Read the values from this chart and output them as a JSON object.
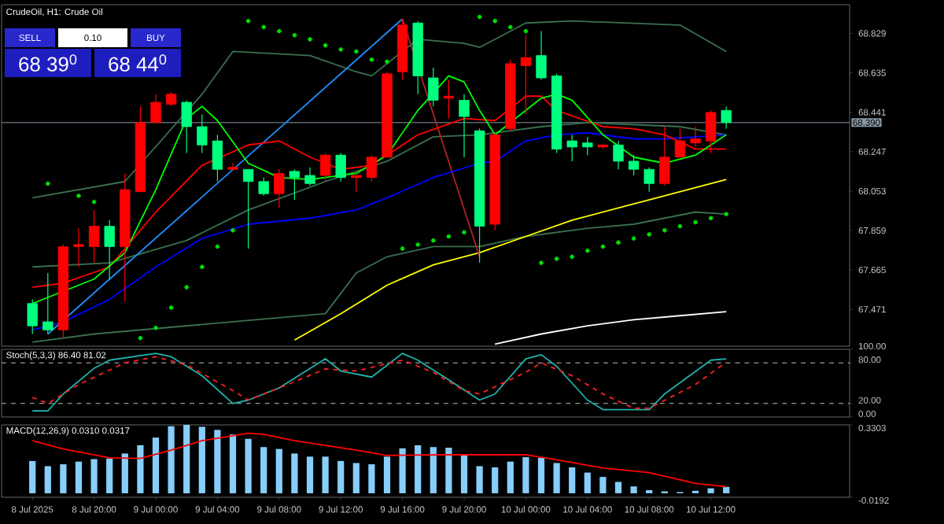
{
  "chart_data": [
    {
      "type": "candlestick",
      "title": "CrudeOil, H1: Crude Oil",
      "x": [
        "2025-07-08T16:00",
        "2025-07-08T17:00",
        "2025-07-08T18:00",
        "2025-07-08T19:00",
        "2025-07-08T20:00",
        "2025-07-08T21:00",
        "2025-07-08T22:00",
        "2025-07-08T23:00",
        "2025-07-09T00:00",
        "2025-07-09T01:00",
        "2025-07-09T02:00",
        "2025-07-09T03:00",
        "2025-07-09T04:00",
        "2025-07-09T05:00",
        "2025-07-09T06:00",
        "2025-07-09T07:00",
        "2025-07-09T08:00",
        "2025-07-09T09:00",
        "2025-07-09T10:00",
        "2025-07-09T11:00",
        "2025-07-09T12:00",
        "2025-07-09T13:00",
        "2025-07-09T14:00",
        "2025-07-09T15:00",
        "2025-07-09T16:00",
        "2025-07-09T17:00",
        "2025-07-09T18:00",
        "2025-07-09T19:00",
        "2025-07-09T20:00",
        "2025-07-09T21:00",
        "2025-07-09T22:00",
        "2025-07-09T23:00",
        "2025-07-10T00:00",
        "2025-07-10T01:00",
        "2025-07-10T02:00",
        "2025-07-10T03:00",
        "2025-07-10T04:00",
        "2025-07-10T05:00",
        "2025-07-10T06:00",
        "2025-07-10T07:00",
        "2025-07-10T08:00",
        "2025-07-10T09:00",
        "2025-07-10T10:00",
        "2025-07-10T11:00",
        "2025-07-10T12:00",
        "2025-07-10T13:00"
      ],
      "ohlc": [
        [
          67.5,
          67.52,
          67.35,
          67.39
        ],
        [
          67.41,
          67.65,
          67.35,
          67.37
        ],
        [
          67.37,
          67.79,
          67.33,
          67.78
        ],
        [
          67.78,
          67.87,
          67.68,
          67.79
        ],
        [
          67.78,
          67.96,
          67.7,
          67.88
        ],
        [
          67.88,
          67.91,
          67.62,
          67.78
        ],
        [
          67.78,
          68.14,
          67.51,
          68.06
        ],
        [
          68.05,
          68.47,
          68.05,
          68.39
        ],
        [
          68.39,
          68.53,
          68.39,
          68.49
        ],
        [
          68.48,
          68.54,
          68.47,
          68.53
        ],
        [
          68.49,
          68.5,
          68.24,
          68.37
        ],
        [
          68.37,
          68.43,
          68.24,
          68.28
        ],
        [
          68.3,
          68.33,
          68.1,
          68.16
        ],
        [
          68.16,
          68.19,
          68.16,
          68.17
        ],
        [
          68.16,
          68.16,
          67.77,
          68.1
        ],
        [
          68.1,
          68.12,
          68.03,
          68.04
        ],
        [
          68.04,
          68.16,
          67.97,
          68.14
        ],
        [
          68.15,
          68.16,
          68.01,
          68.12
        ],
        [
          68.13,
          68.17,
          68.08,
          68.09
        ],
        [
          68.13,
          68.24,
          68.1,
          68.23
        ],
        [
          68.23,
          68.24,
          68.1,
          68.12
        ],
        [
          68.12,
          68.13,
          68.05,
          68.13
        ],
        [
          68.12,
          68.23,
          68.1,
          68.22
        ],
        [
          68.22,
          68.64,
          68.22,
          68.63
        ],
        [
          68.64,
          68.9,
          68.6,
          68.87
        ],
        [
          68.88,
          68.89,
          68.53,
          68.62
        ],
        [
          68.61,
          68.66,
          68.47,
          68.5
        ],
        [
          68.51,
          68.6,
          68.41,
          68.52
        ],
        [
          68.5,
          68.53,
          68.22,
          68.42
        ],
        [
          68.35,
          68.36,
          67.7,
          67.88
        ],
        [
          67.89,
          68.34,
          67.86,
          68.33
        ],
        [
          68.36,
          68.7,
          68.35,
          68.68
        ],
        [
          68.67,
          68.82,
          68.43,
          68.71
        ],
        [
          68.72,
          68.84,
          68.6,
          68.61
        ],
        [
          68.62,
          68.63,
          68.24,
          68.26
        ],
        [
          68.3,
          68.33,
          68.2,
          68.27
        ],
        [
          68.29,
          68.32,
          68.23,
          68.27
        ],
        [
          68.27,
          68.28,
          68.26,
          68.28
        ],
        [
          68.28,
          68.3,
          68.16,
          68.2
        ],
        [
          68.2,
          68.23,
          68.13,
          68.16
        ],
        [
          68.16,
          68.17,
          68.05,
          68.09
        ],
        [
          68.09,
          68.37,
          68.08,
          68.22
        ],
        [
          68.22,
          68.36,
          68.22,
          68.3
        ],
        [
          68.29,
          68.37,
          68.27,
          68.31
        ],
        [
          68.3,
          68.45,
          68.24,
          68.44
        ],
        [
          68.45,
          68.47,
          68.36,
          68.39
        ]
      ],
      "colors": [
        "#00ff7f",
        "#00ff7f",
        "#ff0000",
        "#ff0000",
        "#ff0000",
        "#00ff7f",
        "#ff0000",
        "#ff0000",
        "#ff0000",
        "#ff0000",
        "#00ff7f",
        "#00ff7f",
        "#00ff7f",
        "#ff0000",
        "#00ff7f",
        "#00ff7f",
        "#ff0000",
        "#00ff7f",
        "#00ff7f",
        "#ff0000",
        "#00ff7f",
        "#ff0000",
        "#ff0000",
        "#ff0000",
        "#ff0000",
        "#00ff7f",
        "#00ff7f",
        "#ff0000",
        "#00ff7f",
        "#00ff7f",
        "#ff0000",
        "#ff0000",
        "#ff0000",
        "#00ff7f",
        "#00ff7f",
        "#00ff7f",
        "#00ff7f",
        "#ff0000",
        "#00ff7f",
        "#00ff7f",
        "#00ff7f",
        "#ff0000",
        "#ff0000",
        "#ff0000",
        "#ff0000",
        "#00ff7f"
      ],
      "xlim": [
        "2025-07-08T14:00",
        "2025-07-10T21:00"
      ],
      "ylim": [
        67.29,
        68.97
      ],
      "yticks": [
        68.829,
        68.635,
        68.441,
        68.247,
        68.053,
        67.859,
        67.665,
        67.471
      ],
      "tick_labels": "y",
      "ref_lines": [
        {
          "axis": "y",
          "value": 68.39,
          "label": "68.390",
          "color": "#8a9aa8"
        }
      ],
      "annotations": [
        "SELL",
        "0.10",
        "BUY",
        "68 39$^{0}$",
        "68 44$^{0}$"
      ],
      "series": [
        {
          "type": "line",
          "color": "#3a7050",
          "x": [
            "2025-07-08T16:00",
            "2025-07-08T22:00",
            "2025-07-09T03:00",
            "2025-07-09T05:00",
            "2025-07-09T10:00",
            "2025-07-09T13:00",
            "2025-07-09T14:00",
            "2025-07-09T17:00",
            "2025-07-09T20:00",
            "2025-07-09T21:00",
            "2025-07-10T00:00",
            "2025-07-10T03:00",
            "2025-07-10T10:00",
            "2025-07-10T13:00"
          ],
          "values": [
            68.02,
            68.1,
            68.53,
            68.74,
            68.72,
            68.64,
            68.62,
            68.8,
            68.78,
            68.76,
            68.88,
            68.89,
            68.87,
            68.74
          ]
        },
        {
          "type": "line",
          "color": "#3a7050",
          "x": [
            "2025-07-08T16:00",
            "2025-07-08T21:00",
            "2025-07-09T02:00",
            "2025-07-09T06:00",
            "2025-07-09T11:00",
            "2025-07-09T15:00",
            "2025-07-09T18:00",
            "2025-07-09T21:00",
            "2025-07-10T01:00",
            "2025-07-10T04:00",
            "2025-07-10T10:00",
            "2025-07-10T13:00"
          ],
          "values": [
            67.68,
            67.7,
            67.81,
            67.96,
            68.1,
            68.2,
            68.32,
            68.33,
            68.37,
            68.39,
            68.37,
            68.33
          ]
        },
        {
          "type": "line",
          "color": "#3a7050",
          "x": [
            "2025-07-08T16:00",
            "2025-07-08T20:00",
            "2025-07-09T11:00",
            "2025-07-09T13:00",
            "2025-07-09T15:00",
            "2025-07-09T18:00",
            "2025-07-09T21:00",
            "2025-07-10T00:00",
            "2025-07-10T04:00",
            "2025-07-10T07:00",
            "2025-07-10T11:00",
            "2025-07-10T13:00"
          ],
          "values": [
            67.31,
            67.35,
            67.45,
            67.65,
            67.73,
            67.78,
            67.78,
            67.83,
            67.87,
            67.89,
            67.95,
            67.94
          ]
        },
        {
          "type": "line",
          "color": "#ffffff",
          "x": [
            "2025-07-09T22:00",
            "2025-07-10T01:00",
            "2025-07-10T04:00",
            "2025-07-10T07:00",
            "2025-07-10T10:00",
            "2025-07-10T13:00"
          ],
          "values": [
            67.3,
            67.35,
            67.39,
            67.42,
            67.44,
            67.46
          ]
        },
        {
          "type": "line",
          "color": "#ffff00",
          "x": [
            "2025-07-09T09:00",
            "2025-07-09T12:00",
            "2025-07-09T15:00",
            "2025-07-09T18:00",
            "2025-07-09T21:00",
            "2025-07-10T00:00",
            "2025-07-10T03:00",
            "2025-07-10T07:00",
            "2025-07-10T13:00"
          ],
          "values": [
            67.32,
            67.45,
            67.59,
            67.69,
            67.75,
            67.83,
            67.91,
            67.99,
            68.11
          ]
        },
        {
          "type": "line",
          "color": "#1e90ff",
          "x": [
            "2025-07-08T17:00",
            "2025-07-09T16:00"
          ],
          "values": [
            67.35,
            68.9
          ]
        },
        {
          "type": "line",
          "color": "#b22222",
          "x": [
            "2025-07-09T16:00",
            "2025-07-09T21:00"
          ],
          "values": [
            68.9,
            67.73
          ]
        },
        {
          "type": "line",
          "color": "#0000ff",
          "x": [
            "2025-07-08T16:00",
            "2025-07-08T18:00",
            "2025-07-08T21:00",
            "2025-07-09T00:00",
            "2025-07-09T03:00",
            "2025-07-09T06:00",
            "2025-07-09T10:00",
            "2025-07-09T13:00",
            "2025-07-09T15:00",
            "2025-07-09T18:00",
            "2025-07-09T21:00",
            "2025-07-09T22:00",
            "2025-07-10T00:00",
            "2025-07-10T02:00",
            "2025-07-10T04:00",
            "2025-07-10T07:00",
            "2025-07-10T09:00",
            "2025-07-10T11:00",
            "2025-07-10T13:00"
          ],
          "values": [
            67.37,
            67.41,
            67.52,
            67.68,
            67.82,
            67.89,
            67.92,
            67.96,
            68.02,
            68.12,
            68.19,
            68.2,
            68.3,
            68.33,
            68.34,
            68.31,
            68.31,
            68.32,
            68.33
          ]
        },
        {
          "type": "line",
          "color": "#ff0000",
          "x": [
            "2025-07-08T16:00",
            "2025-07-08T18:00",
            "2025-07-08T21:00",
            "2025-07-09T00:00",
            "2025-07-09T03:00",
            "2025-07-09T06:00",
            "2025-07-09T08:00",
            "2025-07-09T10:00",
            "2025-07-09T12:00",
            "2025-07-09T14:00",
            "2025-07-09T17:00",
            "2025-07-09T20:00",
            "2025-07-09T22:00",
            "2025-07-10T00:00",
            "2025-07-10T01:00",
            "2025-07-10T02:00",
            "2025-07-10T05:00",
            "2025-07-10T07:00",
            "2025-07-10T09:00",
            "2025-07-10T11:00",
            "2025-07-10T13:00"
          ],
          "values": [
            67.58,
            67.6,
            67.68,
            67.95,
            68.18,
            68.28,
            68.3,
            68.22,
            68.16,
            68.18,
            68.33,
            68.41,
            68.4,
            68.52,
            68.52,
            68.45,
            68.37,
            68.36,
            68.33,
            68.26,
            68.26
          ]
        },
        {
          "type": "line",
          "color": "#00ff00",
          "x": [
            "2025-07-08T16:00",
            "2025-07-08T20:00",
            "2025-07-08T22:00",
            "2025-07-09T00:00",
            "2025-07-09T02:00",
            "2025-07-09T03:00",
            "2025-07-09T04:00",
            "2025-07-09T06:00",
            "2025-07-09T08:00",
            "2025-07-09T10:00",
            "2025-07-09T13:00",
            "2025-07-09T15:00",
            "2025-07-09T17:00",
            "2025-07-09T19:00",
            "2025-07-09T20:00",
            "2025-07-09T21:00",
            "2025-07-09T22:00",
            "2025-07-10T01:00",
            "2025-07-10T02:00",
            "2025-07-10T03:00",
            "2025-07-10T05:00",
            "2025-07-10T07:00",
            "2025-07-10T09:00",
            "2025-07-10T11:00",
            "2025-07-10T13:00"
          ],
          "values": [
            67.5,
            67.62,
            67.75,
            68.06,
            68.41,
            68.47,
            68.4,
            68.19,
            68.12,
            68.11,
            68.14,
            68.23,
            68.45,
            68.62,
            68.59,
            68.45,
            68.33,
            68.51,
            68.53,
            68.5,
            68.33,
            68.22,
            68.19,
            68.23,
            68.33
          ]
        },
        {
          "type": "scatter",
          "color": "#00e000",
          "marker": "circle",
          "x": [
            "2025-07-08T17:00",
            "2025-07-08T19:00",
            "2025-07-08T20:00",
            "2025-07-08T23:00",
            "2025-07-09T00:00",
            "2025-07-09T01:00",
            "2025-07-09T02:00",
            "2025-07-09T03:00",
            "2025-07-09T04:00",
            "2025-07-09T05:00",
            "2025-07-09T06:00",
            "2025-07-09T07:00",
            "2025-07-09T08:00",
            "2025-07-09T09:00",
            "2025-07-09T10:00",
            "2025-07-09T11:00",
            "2025-07-09T12:00",
            "2025-07-09T13:00",
            "2025-07-09T14:00",
            "2025-07-09T15:00",
            "2025-07-09T16:00",
            "2025-07-09T17:00",
            "2025-07-09T18:00",
            "2025-07-09T19:00",
            "2025-07-09T20:00",
            "2025-07-09T21:00",
            "2025-07-09T22:00",
            "2025-07-09T23:00",
            "2025-07-10T00:00",
            "2025-07-10T01:00",
            "2025-07-10T02:00",
            "2025-07-10T03:00",
            "2025-07-10T04:00",
            "2025-07-10T05:00",
            "2025-07-10T06:00",
            "2025-07-10T07:00",
            "2025-07-10T08:00",
            "2025-07-10T09:00",
            "2025-07-10T10:00",
            "2025-07-10T11:00",
            "2025-07-10T12:00",
            "2025-07-10T13:00"
          ],
          "values": [
            68.09,
            68.03,
            68.0,
            67.33,
            67.38,
            67.48,
            67.58,
            67.68,
            67.78,
            67.86,
            68.89,
            68.86,
            68.84,
            68.82,
            68.8,
            68.77,
            68.75,
            68.74,
            68.7,
            68.69,
            67.77,
            67.79,
            67.81,
            67.83,
            67.85,
            68.91,
            68.89,
            68.86,
            68.84,
            67.7,
            67.72,
            67.73,
            67.76,
            67.78,
            67.8,
            67.82,
            67.84,
            67.86,
            67.88,
            67.9,
            67.92,
            67.94
          ]
        }
      ]
    },
    {
      "type": "line",
      "title": "Stoch(5,3,3) 86.40 81.02",
      "xlim": [
        "2025-07-08T14:00",
        "2025-07-10T21:00"
      ],
      "ylim": [
        0,
        100
      ],
      "yticks": [
        {
          "value": 100,
          "label": "100.00"
        },
        {
          "value": 80,
          "label": "80.00"
        },
        {
          "value": 20,
          "label": "20.00"
        },
        {
          "value": 0,
          "label": "0.00"
        }
      ],
      "tick_labels": "y",
      "ref_lines": [
        {
          "axis": "y",
          "value": 80,
          "color": "#c0c0c0",
          "line_style": "dashed"
        },
        {
          "axis": "y",
          "value": 20,
          "color": "#c0c0c0",
          "line_style": "dashed"
        }
      ],
      "series": [
        {
          "color": "#20b2aa",
          "x": [
            "2025-07-08T16:00",
            "2025-07-08T17:00",
            "2025-07-08T18:00",
            "2025-07-08T20:00",
            "2025-07-08T21:00",
            "2025-07-09T00:00",
            "2025-07-09T01:00",
            "2025-07-09T03:00",
            "2025-07-09T05:00",
            "2025-07-09T06:00",
            "2025-07-09T08:00",
            "2025-07-09T11:00",
            "2025-07-09T12:00",
            "2025-07-09T14:00",
            "2025-07-09T16:00",
            "2025-07-09T17:00",
            "2025-07-09T19:00",
            "2025-07-09T21:00",
            "2025-07-09T22:00",
            "2025-07-10T00:00",
            "2025-07-10T01:00",
            "2025-07-10T02:00",
            "2025-07-10T04:00",
            "2025-07-10T05:00",
            "2025-07-10T08:00",
            "2025-07-10T09:00",
            "2025-07-10T12:00",
            "2025-07-10T13:00"
          ],
          "values": [
            9,
            9,
            34,
            72,
            84,
            94,
            89,
            61,
            20,
            25,
            43,
            86,
            68,
            59,
            94,
            84,
            55,
            25,
            34,
            86,
            92,
            75,
            25,
            11,
            11,
            34,
            84,
            86
          ]
        },
        {
          "color": "#ff2020",
          "line_style": "dashed",
          "x": [
            "2025-07-08T16:00",
            "2025-07-08T17:00",
            "2025-07-08T19:00",
            "2025-07-08T22:00",
            "2025-07-09T00:00",
            "2025-07-09T02:00",
            "2025-07-09T05:00",
            "2025-07-09T06:00",
            "2025-07-09T09:00",
            "2025-07-09T11:00",
            "2025-07-09T13:00",
            "2025-07-09T16:00",
            "2025-07-09T18:00",
            "2025-07-09T20:00",
            "2025-07-09T21:00",
            "2025-07-10T00:00",
            "2025-07-10T01:00",
            "2025-07-10T03:00",
            "2025-07-10T05:00",
            "2025-07-10T07:00",
            "2025-07-10T08:00",
            "2025-07-10T11:00",
            "2025-07-10T13:00"
          ],
          "values": [
            29,
            20,
            48,
            80,
            89,
            77,
            39,
            25,
            52,
            71,
            68,
            84,
            66,
            39,
            34,
            66,
            80,
            61,
            34,
            13,
            13,
            48,
            81
          ]
        }
      ]
    },
    {
      "type": "bar",
      "title": "MACD(12,26,9) 0.0310 0.0317",
      "x": [
        "2025-07-08T16:00",
        "2025-07-08T17:00",
        "2025-07-08T18:00",
        "2025-07-08T19:00",
        "2025-07-08T20:00",
        "2025-07-08T21:00",
        "2025-07-08T22:00",
        "2025-07-08T23:00",
        "2025-07-09T00:00",
        "2025-07-09T01:00",
        "2025-07-09T02:00",
        "2025-07-09T03:00",
        "2025-07-09T04:00",
        "2025-07-09T05:00",
        "2025-07-09T06:00",
        "2025-07-09T07:00",
        "2025-07-09T08:00",
        "2025-07-09T09:00",
        "2025-07-09T10:00",
        "2025-07-09T11:00",
        "2025-07-09T12:00",
        "2025-07-09T13:00",
        "2025-07-09T14:00",
        "2025-07-09T15:00",
        "2025-07-09T16:00",
        "2025-07-09T17:00",
        "2025-07-09T18:00",
        "2025-07-09T19:00",
        "2025-07-09T20:00",
        "2025-07-09T21:00",
        "2025-07-09T22:00",
        "2025-07-09T23:00",
        "2025-07-10T00:00",
        "2025-07-10T01:00",
        "2025-07-10T02:00",
        "2025-07-10T03:00",
        "2025-07-10T04:00",
        "2025-07-10T05:00",
        "2025-07-10T06:00",
        "2025-07-10T07:00",
        "2025-07-10T08:00",
        "2025-07-10T09:00",
        "2025-07-10T10:00",
        "2025-07-10T11:00",
        "2025-07-10T12:00",
        "2025-07-10T13:00"
      ],
      "xlim": [
        "2025-07-08T14:00",
        "2025-07-10T21:00"
      ],
      "ylim": [
        -0.0192,
        0.3303
      ],
      "yticks": [
        0.3303,
        -0.0192
      ],
      "xticks": [
        {
          "value": "2025-07-08T16:00",
          "label": "8 Jul 2025"
        },
        {
          "value": "2025-07-08T20:00",
          "label": "8 Jul 20:00"
        },
        {
          "value": "2025-07-09T00:00",
          "label": "9 Jul 00:00"
        },
        {
          "value": "2025-07-09T04:00",
          "label": "9 Jul 04:00"
        },
        {
          "value": "2025-07-09T08:00",
          "label": "9 Jul 08:00"
        },
        {
          "value": "2025-07-09T12:00",
          "label": "9 Jul 12:00"
        },
        {
          "value": "2025-07-09T16:00",
          "label": "9 Jul 16:00"
        },
        {
          "value": "2025-07-09T20:00",
          "label": "9 Jul 20:00"
        },
        {
          "value": "2025-07-10T00:00",
          "label": "10 Jul 00:00"
        },
        {
          "value": "2025-07-10T04:00",
          "label": "10 Jul 04:00"
        },
        {
          "value": "2025-07-10T08:00",
          "label": "10 Jul 08:00"
        },
        {
          "value": "2025-07-10T12:00",
          "label": "10 Jul 12:00"
        }
      ],
      "series": [
        {
          "color": "#87cefa",
          "values": [
            0.156,
            0.131,
            0.14,
            0.153,
            0.165,
            0.168,
            0.192,
            0.232,
            0.269,
            0.324,
            0.33,
            0.321,
            0.306,
            0.284,
            0.263,
            0.223,
            0.214,
            0.192,
            0.177,
            0.177,
            0.156,
            0.146,
            0.14,
            0.177,
            0.217,
            0.232,
            0.223,
            0.22,
            0.183,
            0.131,
            0.125,
            0.153,
            0.174,
            0.171,
            0.146,
            0.125,
            0.1,
            0.079,
            0.055,
            0.033,
            0.015,
            0.009,
            0.006,
            0.012,
            0.024,
            0.031
          ]
        },
        {
          "type": "line",
          "color": "#ff0000",
          "x": [
            "2025-07-08T16:00",
            "2025-07-08T18:00",
            "2025-07-08T21:00",
            "2025-07-08T23:00",
            "2025-07-09T01:00",
            "2025-07-09T03:00",
            "2025-07-09T06:00",
            "2025-07-09T07:00",
            "2025-07-09T09:00",
            "2025-07-09T13:00",
            "2025-07-09T15:00",
            "2025-07-09T19:00",
            "2025-07-10T00:00",
            "2025-07-10T02:00",
            "2025-07-10T05:00",
            "2025-07-10T08:00",
            "2025-07-10T11:00",
            "2025-07-10T13:00"
          ],
          "values": [
            0.254,
            0.214,
            0.171,
            0.168,
            0.208,
            0.254,
            0.29,
            0.284,
            0.254,
            0.208,
            0.183,
            0.186,
            0.186,
            0.162,
            0.122,
            0.1,
            0.048,
            0.032
          ]
        }
      ]
    }
  ]
}
